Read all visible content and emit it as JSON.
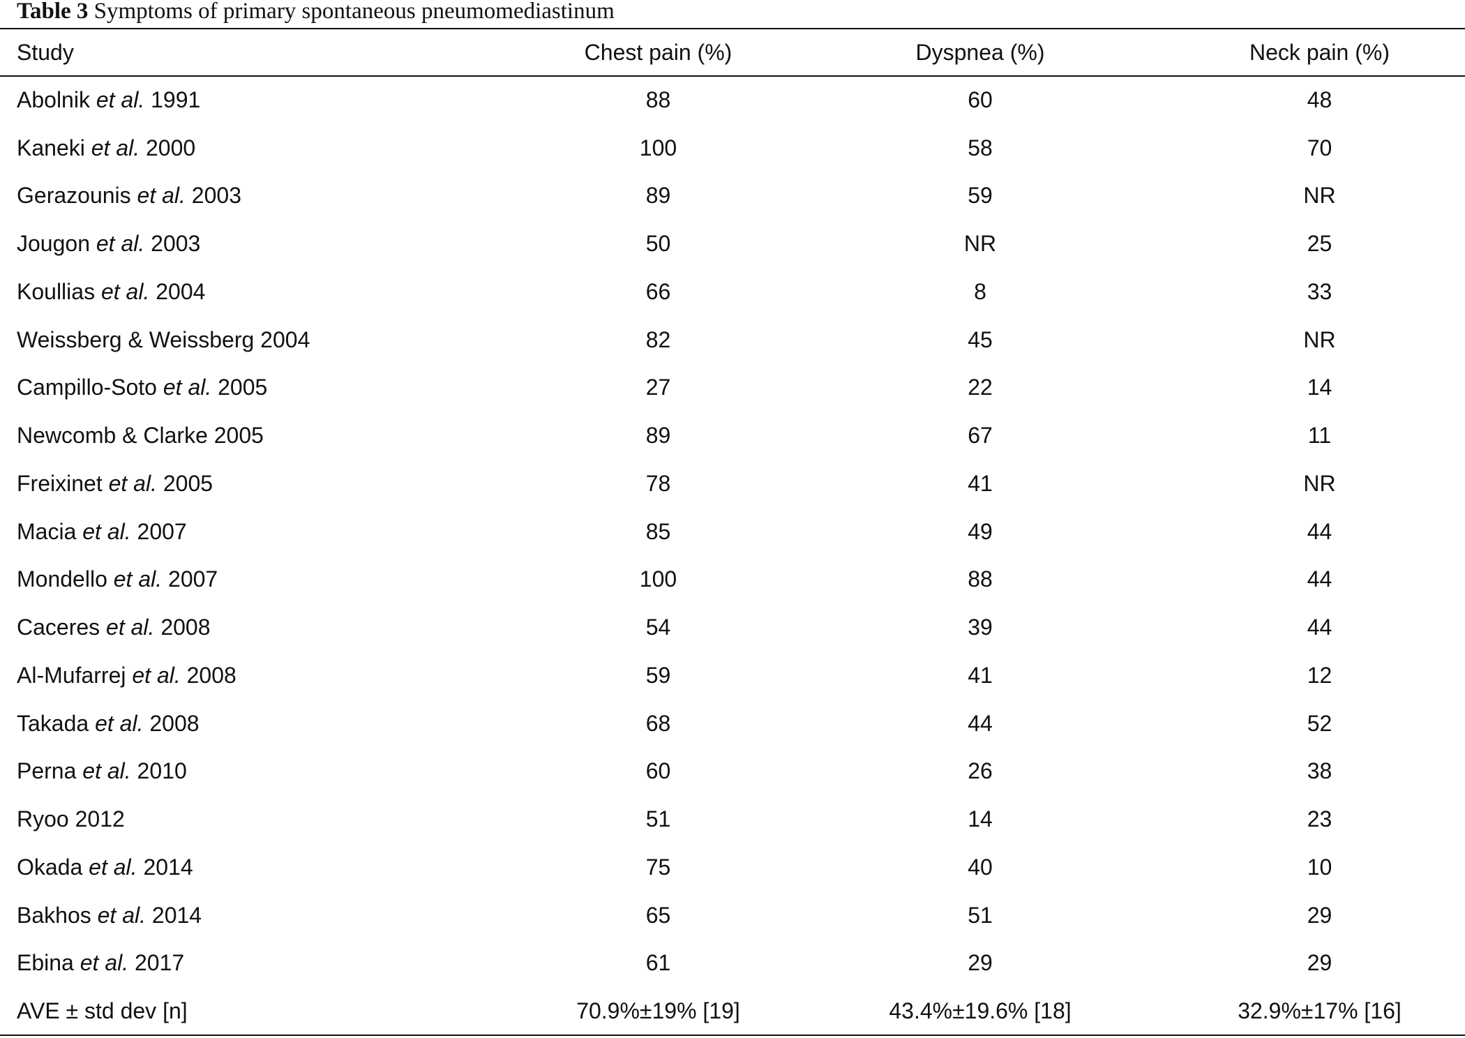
{
  "caption": {
    "label": "Table 3",
    "title": "Symptoms of primary spontaneous pneumomediastinum"
  },
  "headers": [
    "Study",
    "Chest pain (%)",
    "Dyspnea (%)",
    "Neck pain (%)"
  ],
  "rows": [
    {
      "author": "Abolnik",
      "etal": "et al.",
      "year": "1991",
      "chest": "88",
      "dyspnea": "60",
      "neck": "48"
    },
    {
      "author": "Kaneki",
      "etal": "et al.",
      "year": "2000",
      "chest": "100",
      "dyspnea": "58",
      "neck": "70"
    },
    {
      "author": "Gerazounis",
      "etal": "et al.",
      "year": "2003",
      "chest": "89",
      "dyspnea": "59",
      "neck": "NR"
    },
    {
      "author": "Jougon",
      "etal": "et al.",
      "year": "2003",
      "chest": "50",
      "dyspnea": "NR",
      "neck": "25"
    },
    {
      "author": "Koullias",
      "etal": "et al.",
      "year": "2004",
      "chest": "66",
      "dyspnea": "8",
      "neck": "33"
    },
    {
      "author": "Weissberg & Weissberg",
      "etal": "",
      "year": "2004",
      "chest": "82",
      "dyspnea": "45",
      "neck": "NR"
    },
    {
      "author": "Campillo-Soto",
      "etal": "et al.",
      "year": "2005",
      "chest": "27",
      "dyspnea": "22",
      "neck": "14"
    },
    {
      "author": "Newcomb & Clarke",
      "etal": "",
      "year": "2005",
      "chest": "89",
      "dyspnea": "67",
      "neck": "11"
    },
    {
      "author": "Freixinet",
      "etal": "et al.",
      "year": "2005",
      "chest": "78",
      "dyspnea": "41",
      "neck": "NR"
    },
    {
      "author": "Macia",
      "etal": "et al.",
      "year": "2007",
      "chest": "85",
      "dyspnea": "49",
      "neck": "44"
    },
    {
      "author": "Mondello",
      "etal": "et al.",
      "year": "2007",
      "chest": "100",
      "dyspnea": "88",
      "neck": "44"
    },
    {
      "author": "Caceres",
      "etal": "et al.",
      "year": "2008",
      "chest": "54",
      "dyspnea": "39",
      "neck": "44"
    },
    {
      "author": "Al-Mufarrej",
      "etal": "et al.",
      "year": "2008",
      "chest": "59",
      "dyspnea": "41",
      "neck": "12"
    },
    {
      "author": "Takada",
      "etal": "et al.",
      "year": "2008",
      "chest": "68",
      "dyspnea": "44",
      "neck": "52"
    },
    {
      "author": "Perna",
      "etal": "et al.",
      "year": "2010",
      "chest": "60",
      "dyspnea": "26",
      "neck": "38"
    },
    {
      "author": "Ryoo",
      "etal": "",
      "year": "2012",
      "chest": "51",
      "dyspnea": "14",
      "neck": "23"
    },
    {
      "author": "Okada",
      "etal": "et al.",
      "year": "2014",
      "chest": "75",
      "dyspnea": "40",
      "neck": "10"
    },
    {
      "author": "Bakhos",
      "etal": "et al.",
      "year": "2014",
      "chest": "65",
      "dyspnea": "51",
      "neck": "29"
    },
    {
      "author": "Ebina",
      "etal": "et al.",
      "year": "2017",
      "chest": "61",
      "dyspnea": "29",
      "neck": "29"
    },
    {
      "author": "AVE ± std dev [n]",
      "etal": "",
      "year": "",
      "chest": "70.9%±19% [19]",
      "dyspnea": "43.4%±19.6% [18]",
      "neck": "32.9%±17% [16]"
    }
  ]
}
